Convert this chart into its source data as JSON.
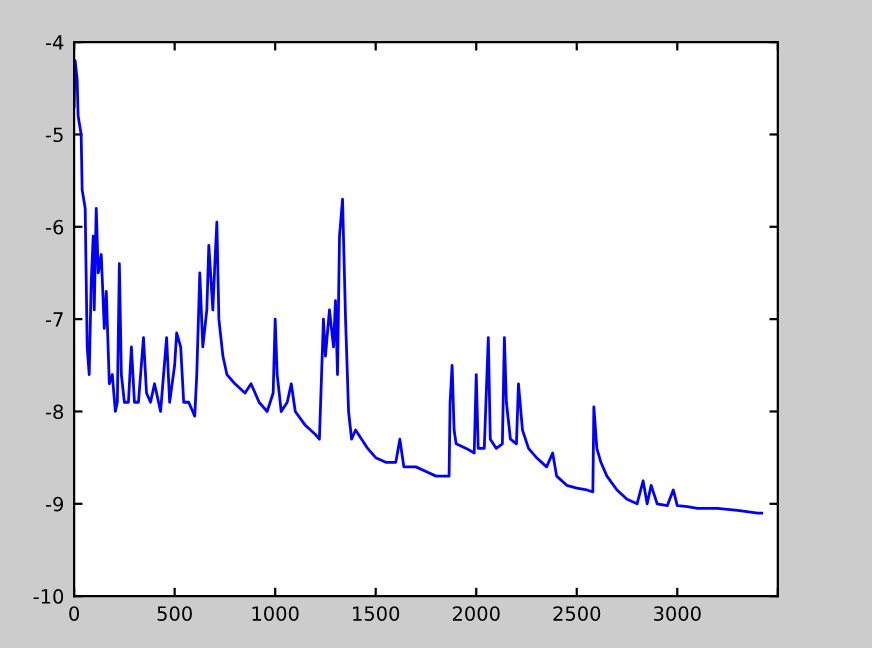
{
  "chart_data": {
    "type": "line",
    "x": [
      0,
      5,
      15,
      20,
      35,
      40,
      55,
      65,
      75,
      85,
      95,
      100,
      110,
      120,
      135,
      150,
      160,
      175,
      190,
      205,
      215,
      225,
      235,
      250,
      270,
      285,
      300,
      320,
      345,
      360,
      380,
      400,
      430,
      460,
      475,
      500,
      510,
      530,
      545,
      570,
      600,
      610,
      625,
      640,
      660,
      670,
      690,
      700,
      710,
      720,
      740,
      760,
      800,
      850,
      880,
      920,
      960,
      990,
      1000,
      1010,
      1030,
      1060,
      1080,
      1100,
      1150,
      1200,
      1220,
      1240,
      1250,
      1270,
      1290,
      1300,
      1310,
      1320,
      1335,
      1350,
      1365,
      1380,
      1400,
      1430,
      1460,
      1500,
      1550,
      1600,
      1620,
      1640,
      1700,
      1750,
      1800,
      1840,
      1865,
      1870,
      1880,
      1890,
      1900,
      1950,
      1990,
      2000,
      2010,
      2040,
      2050,
      2060,
      2070,
      2100,
      2130,
      2140,
      2150,
      2170,
      2200,
      2210,
      2230,
      2260,
      2300,
      2350,
      2380,
      2400,
      2450,
      2500,
      2550,
      2580,
      2585,
      2600,
      2620,
      2650,
      2700,
      2750,
      2800,
      2830,
      2850,
      2870,
      2900,
      2950,
      2980,
      3000,
      3050,
      3100,
      3200,
      3300,
      3400,
      3420
    ],
    "series": [
      {
        "color": "#0000ff",
        "values": [
          -4.7,
          -4.2,
          -4.4,
          -4.8,
          -5.0,
          -5.6,
          -5.8,
          -7.3,
          -7.6,
          -6.6,
          -6.1,
          -6.9,
          -5.8,
          -6.5,
          -6.3,
          -7.1,
          -6.7,
          -7.7,
          -7.6,
          -8.0,
          -7.9,
          -6.4,
          -7.6,
          -7.9,
          -7.9,
          -7.3,
          -7.9,
          -7.9,
          -7.2,
          -7.8,
          -7.9,
          -7.7,
          -8.0,
          -7.2,
          -7.9,
          -7.5,
          -7.15,
          -7.3,
          -7.9,
          -7.9,
          -8.05,
          -7.6,
          -6.5,
          -7.3,
          -6.9,
          -6.2,
          -6.9,
          -6.4,
          -5.95,
          -7.0,
          -7.4,
          -7.6,
          -7.7,
          -7.8,
          -7.7,
          -7.9,
          -8.0,
          -7.8,
          -7.0,
          -7.6,
          -8.0,
          -7.9,
          -7.7,
          -8.0,
          -8.15,
          -8.25,
          -8.3,
          -7.0,
          -7.4,
          -6.9,
          -7.3,
          -6.8,
          -7.6,
          -6.1,
          -5.7,
          -7.0,
          -8.0,
          -8.3,
          -8.2,
          -8.3,
          -8.4,
          -8.5,
          -8.55,
          -8.55,
          -8.3,
          -8.6,
          -8.6,
          -8.65,
          -8.7,
          -8.7,
          -8.7,
          -7.9,
          -7.5,
          -8.2,
          -8.35,
          -8.4,
          -8.45,
          -7.6,
          -8.4,
          -8.4,
          -7.8,
          -7.2,
          -8.3,
          -8.4,
          -8.35,
          -7.2,
          -7.9,
          -8.3,
          -8.35,
          -7.7,
          -8.2,
          -8.4,
          -8.5,
          -8.6,
          -8.45,
          -8.7,
          -8.8,
          -8.83,
          -8.85,
          -8.87,
          -7.95,
          -8.4,
          -8.55,
          -8.7,
          -8.85,
          -8.95,
          -9.0,
          -8.75,
          -9.0,
          -8.8,
          -9.0,
          -9.02,
          -8.85,
          -9.02,
          -9.03,
          -9.05,
          -9.05,
          -9.07,
          -9.1,
          -9.1
        ]
      }
    ],
    "xlim": [
      0,
      3500
    ],
    "xticks": [
      0,
      500,
      1000,
      1500,
      2000,
      2500,
      3000,
      {
        "value": 3500,
        "label": null
      }
    ],
    "ylim": [
      -10,
      -4
    ],
    "yticks": [
      -10,
      -9,
      -8,
      -7,
      -6,
      -5,
      -4
    ],
    "grid": false,
    "legend": false
  }
}
